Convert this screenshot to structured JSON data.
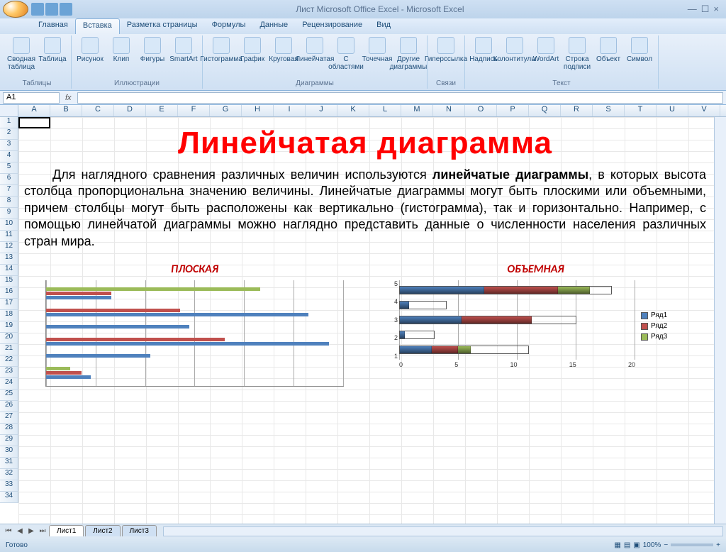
{
  "window": {
    "title": "Лист Microsoft Office Excel - Microsoft Excel",
    "min": "—",
    "max": "☐",
    "close": "×"
  },
  "tabs": [
    "Главная",
    "Вставка",
    "Разметка страницы",
    "Формулы",
    "Данные",
    "Рецензирование",
    "Вид"
  ],
  "active_tab": 1,
  "ribbon": {
    "groups": [
      {
        "label": "Таблицы",
        "items": [
          "Сводная таблица",
          "Таблица"
        ]
      },
      {
        "label": "Иллюстрации",
        "items": [
          "Рисунок",
          "Клип",
          "Фигуры",
          "SmartArt"
        ]
      },
      {
        "label": "Диаграммы",
        "items": [
          "Гистограмма",
          "График",
          "Круговая",
          "Линейчатая",
          "С областями",
          "Точечная",
          "Другие диаграммы"
        ]
      },
      {
        "label": "Связи",
        "items": [
          "Гиперссылка"
        ]
      },
      {
        "label": "Текст",
        "items": [
          "Надпись",
          "Колонтитулы",
          "WordArt",
          "Строка подписи",
          "Объект",
          "Символ"
        ]
      }
    ]
  },
  "namebox": "A1",
  "fx": "fx",
  "columns": [
    "A",
    "B",
    "C",
    "D",
    "E",
    "F",
    "G",
    "H",
    "I",
    "J",
    "K",
    "L",
    "M",
    "N",
    "O",
    "P",
    "Q",
    "R",
    "S",
    "T",
    "U",
    "V"
  ],
  "rows": 34,
  "headline": "Линейчатая диаграмма",
  "para_lead": "Для наглядного сравнения различных величин используются ",
  "para_bold": "линейчатые диаграммы",
  "para_rest": ", в которых высота столбца пропорциональна значению величины. Линейчатые диаграммы могут быть плоскими или объемными, причем столбцы могут быть расположены как вертикально (гистограмма), так и горизонтально. Например, с помощью линейчатой диаграммы можно наглядно представить данные о численности населения различных стран мира.",
  "chart_flat": {
    "title": "ПЛОСКАЯ",
    "type": "bar-horizontal-grouped",
    "series_colors": [
      "#4f81bd",
      "#c0504d",
      "#9bbb59"
    ],
    "grid_lines": 6,
    "rows": [
      {
        "s1": 22,
        "s2": 22,
        "s3": 72
      },
      {
        "s1": 88,
        "s2": 45,
        "s3": 0
      },
      {
        "s1": 48,
        "s2": 0,
        "s3": 0
      },
      {
        "s1": 95,
        "s2": 60,
        "s3": 0
      },
      {
        "s1": 35,
        "s2": 0,
        "s3": 0
      },
      {
        "s1": 15,
        "s2": 12,
        "s3": 8
      }
    ]
  },
  "chart_3d": {
    "title": "ОБЪЕМНАЯ",
    "type": "bar-horizontal-stacked",
    "ylabels": [
      "5",
      "4",
      "3",
      "2",
      "1"
    ],
    "xlabels": [
      "0",
      "5",
      "10",
      "15",
      "20"
    ],
    "xmax": 20,
    "series": [
      "Ряд1",
      "Ряд2",
      "Ряд3"
    ],
    "series_colors": [
      "#4f81bd",
      "#c0504d",
      "#9bbb59"
    ],
    "bars": [
      {
        "s1": 5,
        "s2": 4,
        "s3": 2
      },
      {
        "s1": 3,
        "s2": 0,
        "s3": 0
      },
      {
        "s1": 7,
        "s2": 8,
        "s3": 0
      },
      {
        "s1": 4,
        "s2": 0,
        "s3": 0
      },
      {
        "s1": 8,
        "s2": 7,
        "s3": 3
      }
    ]
  },
  "sheet_tabs": [
    "Лист1",
    "Лист2",
    "Лист3"
  ],
  "active_sheet": 0,
  "status": "Готово",
  "zoom": "100%"
}
